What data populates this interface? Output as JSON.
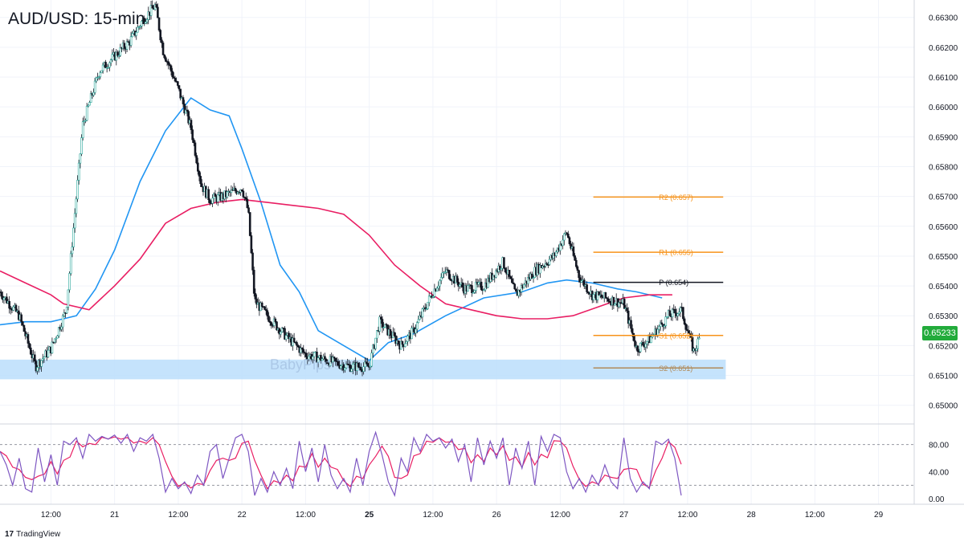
{
  "title": "AUD/USD: 15-min",
  "watermark": "BabyPips",
  "footer": {
    "brand": "TradingView",
    "logo_glyph": "17"
  },
  "last_price": {
    "label": "0.65233",
    "value": 0.65233,
    "color": "#22ab3b"
  },
  "chart_data": [
    {
      "type": "candlestick",
      "title": "AUD/USD: 15-min",
      "ylim": [
        0.6494,
        0.66345
      ],
      "y_ticks": [
        "0.66300",
        "0.66200",
        "0.66100",
        "0.66000",
        "0.65900",
        "0.65800",
        "0.65700",
        "0.65600",
        "0.65500",
        "0.65400",
        "0.65300",
        "0.65200",
        "0.65100",
        "0.65000"
      ],
      "y_tick_values": [
        0.663,
        0.662,
        0.661,
        0.66,
        0.659,
        0.658,
        0.657,
        0.656,
        0.655,
        0.654,
        0.653,
        0.652,
        0.651,
        0.65
      ],
      "x_ticks": [
        "12:00",
        "21",
        "12:00",
        "22",
        "12:00",
        "25",
        "12:00",
        "26",
        "12:00",
        "27",
        "12:00",
        "28",
        "12:00",
        "29"
      ],
      "x_tick_values": [
        0.5,
        1,
        1.5,
        2,
        2.5,
        3,
        3.5,
        4,
        4.5,
        5,
        5.5,
        6,
        6.5,
        7
      ],
      "bold_x_ticks": [
        "25"
      ],
      "xlim": [
        0.1,
        7.28
      ],
      "close_path": [
        [
          0.1,
          0.6538
        ],
        [
          0.25,
          0.653
        ],
        [
          0.38,
          0.6513
        ],
        [
          0.5,
          0.6519
        ],
        [
          0.62,
          0.6532
        ],
        [
          0.75,
          0.6594
        ],
        [
          0.88,
          0.6612
        ],
        [
          1.0,
          0.6617
        ],
        [
          1.12,
          0.6622
        ],
        [
          1.22,
          0.6629
        ],
        [
          1.32,
          0.6634
        ],
        [
          1.38,
          0.6619
        ],
        [
          1.5,
          0.6606
        ],
        [
          1.6,
          0.6593
        ],
        [
          1.68,
          0.6574
        ],
        [
          1.75,
          0.6569
        ],
        [
          1.85,
          0.657
        ],
        [
          2.0,
          0.6573
        ],
        [
          2.05,
          0.6565
        ],
        [
          2.1,
          0.6535
        ],
        [
          2.2,
          0.653
        ],
        [
          2.35,
          0.6523
        ],
        [
          2.5,
          0.6517
        ],
        [
          2.6,
          0.6516
        ],
        [
          2.75,
          0.6514
        ],
        [
          2.85,
          0.6513
        ],
        [
          3.0,
          0.6513
        ],
        [
          3.08,
          0.6528
        ],
        [
          3.25,
          0.652
        ],
        [
          3.35,
          0.6525
        ],
        [
          3.5,
          0.6538
        ],
        [
          3.6,
          0.6545
        ],
        [
          3.75,
          0.6539
        ],
        [
          3.9,
          0.654
        ],
        [
          4.05,
          0.6548
        ],
        [
          4.15,
          0.6537
        ],
        [
          4.3,
          0.6545
        ],
        [
          4.45,
          0.655
        ],
        [
          4.55,
          0.6558
        ],
        [
          4.65,
          0.6543
        ],
        [
          4.75,
          0.6537
        ],
        [
          4.85,
          0.6536
        ],
        [
          5.0,
          0.6534
        ],
        [
          5.1,
          0.6519
        ],
        [
          5.2,
          0.6522
        ],
        [
          5.35,
          0.653
        ],
        [
          5.45,
          0.6532
        ],
        [
          5.55,
          0.6518
        ],
        [
          5.6,
          0.6523
        ]
      ],
      "series": [
        {
          "name": "",
          "type": "ma",
          "color": "#2196f3",
          "points": [
            [
              0.1,
              0.6527
            ],
            [
              0.3,
              0.6528
            ],
            [
              0.5,
              0.6528
            ],
            [
              0.6,
              0.6529
            ],
            [
              0.7,
              0.653
            ],
            [
              0.85,
              0.6539
            ],
            [
              1.0,
              0.6552
            ],
            [
              1.2,
              0.6575
            ],
            [
              1.4,
              0.6592
            ],
            [
              1.6,
              0.6603
            ],
            [
              1.75,
              0.6599
            ],
            [
              1.9,
              0.6597
            ],
            [
              2.0,
              0.6586
            ],
            [
              2.15,
              0.6568
            ],
            [
              2.3,
              0.6547
            ],
            [
              2.45,
              0.6538
            ],
            [
              2.6,
              0.6525
            ],
            [
              2.8,
              0.652
            ],
            [
              3.0,
              0.6515
            ],
            [
              3.15,
              0.6521
            ],
            [
              3.35,
              0.6524
            ],
            [
              3.6,
              0.653
            ],
            [
              3.9,
              0.6536
            ],
            [
              4.2,
              0.6538
            ],
            [
              4.4,
              0.6541
            ],
            [
              4.55,
              0.6542
            ],
            [
              4.75,
              0.6541
            ],
            [
              4.95,
              0.6539
            ],
            [
              5.1,
              0.6538
            ],
            [
              5.3,
              0.6536
            ]
          ]
        },
        {
          "name": "",
          "type": "ma",
          "color": "#e91e63",
          "points": [
            [
              0.1,
              0.6545
            ],
            [
              0.3,
              0.6541
            ],
            [
              0.5,
              0.6537
            ],
            [
              0.6,
              0.6534
            ],
            [
              0.8,
              0.6532
            ],
            [
              1.0,
              0.654
            ],
            [
              1.2,
              0.6549
            ],
            [
              1.4,
              0.6561
            ],
            [
              1.6,
              0.6566
            ],
            [
              1.8,
              0.6568
            ],
            [
              2.0,
              0.6569
            ],
            [
              2.2,
              0.6568
            ],
            [
              2.4,
              0.6567
            ],
            [
              2.6,
              0.6566
            ],
            [
              2.8,
              0.6564
            ],
            [
              3.0,
              0.6557
            ],
            [
              3.2,
              0.6547
            ],
            [
              3.4,
              0.654
            ],
            [
              3.6,
              0.6534
            ],
            [
              3.8,
              0.6532
            ],
            [
              4.0,
              0.653
            ],
            [
              4.2,
              0.6529
            ],
            [
              4.4,
              0.6529
            ],
            [
              4.6,
              0.653
            ],
            [
              4.8,
              0.6533
            ],
            [
              5.0,
              0.6536
            ],
            [
              5.2,
              0.6537
            ],
            [
              5.38,
              0.6537
            ]
          ]
        }
      ],
      "pivot_levels": [
        {
          "label": "R2 (0.657)",
          "value": 0.65698,
          "color": "#f7931a"
        },
        {
          "label": "R1 (0.655)",
          "value": 0.65513,
          "color": "#f7931a"
        },
        {
          "label": "P (0.654)",
          "value": 0.65412,
          "color": "#131722"
        },
        {
          "label": "S1 (0.652)",
          "value": 0.65234,
          "color": "#f7931a"
        },
        {
          "label": "S2 (0.651)",
          "value": 0.65125,
          "color": "#b08a5a"
        }
      ],
      "pivot_x_range": [
        4.76,
        5.78
      ],
      "support_zone": {
        "from": 0.65087,
        "to": 0.65153,
        "x_range": [
          0.1,
          5.8
        ],
        "color": "#bbdefb"
      }
    },
    {
      "type": "line",
      "indicator": "stochastic",
      "ylim": [
        -8,
        108
      ],
      "y_ticks": [
        "80.00",
        "40.00",
        "0.00"
      ],
      "y_tick_values": [
        80,
        40,
        0
      ],
      "dashed_levels": [
        80,
        20
      ],
      "series": [
        {
          "name": "",
          "color": "#7e57c2"
        },
        {
          "name": "",
          "color": "#e91e63"
        }
      ],
      "k_points": [
        [
          0.1,
          70
        ],
        [
          0.15,
          50
        ],
        [
          0.2,
          20
        ],
        [
          0.25,
          60
        ],
        [
          0.3,
          15
        ],
        [
          0.35,
          10
        ],
        [
          0.4,
          75
        ],
        [
          0.45,
          25
        ],
        [
          0.5,
          65
        ],
        [
          0.55,
          20
        ],
        [
          0.6,
          85
        ],
        [
          0.65,
          80
        ],
        [
          0.7,
          90
        ],
        [
          0.75,
          60
        ],
        [
          0.8,
          95
        ],
        [
          0.85,
          85
        ],
        [
          0.9,
          92
        ],
        [
          0.95,
          88
        ],
        [
          1.0,
          94
        ],
        [
          1.05,
          82
        ],
        [
          1.1,
          95
        ],
        [
          1.15,
          70
        ],
        [
          1.2,
          90
        ],
        [
          1.25,
          85
        ],
        [
          1.3,
          95
        ],
        [
          1.35,
          60
        ],
        [
          1.4,
          10
        ],
        [
          1.45,
          30
        ],
        [
          1.5,
          15
        ],
        [
          1.55,
          25
        ],
        [
          1.6,
          8
        ],
        [
          1.65,
          35
        ],
        [
          1.7,
          20
        ],
        [
          1.75,
          70
        ],
        [
          1.8,
          80
        ],
        [
          1.85,
          30
        ],
        [
          1.9,
          60
        ],
        [
          1.95,
          90
        ],
        [
          2.0,
          95
        ],
        [
          2.05,
          70
        ],
        [
          2.1,
          5
        ],
        [
          2.15,
          30
        ],
        [
          2.2,
          10
        ],
        [
          2.25,
          40
        ],
        [
          2.3,
          20
        ],
        [
          2.35,
          45
        ],
        [
          2.4,
          15
        ],
        [
          2.45,
          85
        ],
        [
          2.5,
          40
        ],
        [
          2.55,
          75
        ],
        [
          2.6,
          25
        ],
        [
          2.65,
          80
        ],
        [
          2.7,
          35
        ],
        [
          2.75,
          15
        ],
        [
          2.8,
          30
        ],
        [
          2.85,
          10
        ],
        [
          2.9,
          60
        ],
        [
          2.95,
          20
        ],
        [
          3.0,
          70
        ],
        [
          3.05,
          98
        ],
        [
          3.1,
          65
        ],
        [
          3.15,
          25
        ],
        [
          3.2,
          5
        ],
        [
          3.25,
          60
        ],
        [
          3.3,
          40
        ],
        [
          3.35,
          90
        ],
        [
          3.4,
          70
        ],
        [
          3.45,
          95
        ],
        [
          3.5,
          85
        ],
        [
          3.55,
          90
        ],
        [
          3.6,
          75
        ],
        [
          3.65,
          88
        ],
        [
          3.7,
          55
        ],
        [
          3.75,
          80
        ],
        [
          3.8,
          25
        ],
        [
          3.85,
          90
        ],
        [
          3.9,
          50
        ],
        [
          3.95,
          85
        ],
        [
          4.0,
          60
        ],
        [
          4.05,
          90
        ],
        [
          4.1,
          20
        ],
        [
          4.15,
          75
        ],
        [
          4.2,
          45
        ],
        [
          4.25,
          85
        ],
        [
          4.3,
          20
        ],
        [
          4.35,
          92
        ],
        [
          4.4,
          70
        ],
        [
          4.45,
          95
        ],
        [
          4.5,
          90
        ],
        [
          4.55,
          40
        ],
        [
          4.6,
          15
        ],
        [
          4.65,
          30
        ],
        [
          4.7,
          10
        ],
        [
          4.75,
          35
        ],
        [
          4.8,
          20
        ],
        [
          4.85,
          50
        ],
        [
          4.9,
          25
        ],
        [
          4.95,
          15
        ],
        [
          5.0,
          90
        ],
        [
          5.05,
          30
        ],
        [
          5.1,
          10
        ],
        [
          5.15,
          25
        ],
        [
          5.2,
          15
        ],
        [
          5.25,
          85
        ],
        [
          5.3,
          80
        ],
        [
          5.35,
          88
        ],
        [
          5.4,
          60
        ],
        [
          5.45,
          5
        ]
      ]
    }
  ]
}
